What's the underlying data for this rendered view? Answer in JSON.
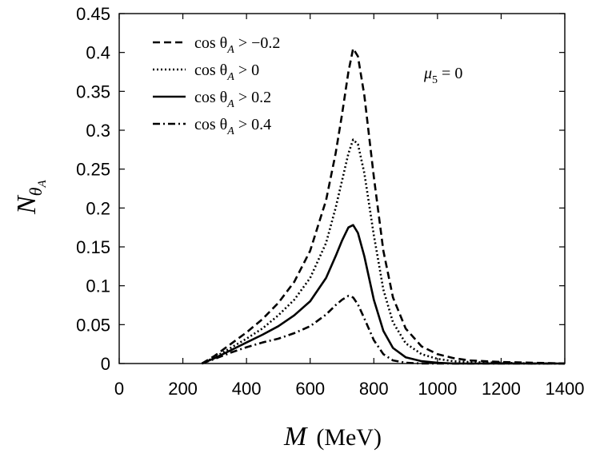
{
  "chart_data": {
    "type": "line",
    "title": "",
    "xlabel_var": "M",
    "xlabel_unit": "(MeV)",
    "ylabel_main": "N",
    "ylabel_sub": "θ",
    "ylabel_subsub": "A",
    "annotation": "μ5 = 0",
    "annotation_main": "μ",
    "annotation_sub": "5",
    "annotation_rest": " = 0",
    "xlim": [
      0,
      1400
    ],
    "ylim": [
      0,
      0.45
    ],
    "xticks": [
      0,
      200,
      400,
      600,
      800,
      1000,
      1200,
      1400
    ],
    "xtick_labels": [
      "0",
      "200",
      "400",
      "600",
      "800",
      "1000",
      "1200",
      "1400"
    ],
    "yticks": [
      0,
      0.05,
      0.1,
      0.15,
      0.2,
      0.25,
      0.3,
      0.35,
      0.4,
      0.45
    ],
    "ytick_labels": [
      "0",
      "0.05",
      "0.1",
      "0.15",
      "0.2",
      "0.25",
      "0.3",
      "0.35",
      "0.4",
      "0.45"
    ],
    "legend_position": "top-left",
    "x": [
      260,
      300,
      350,
      400,
      450,
      500,
      550,
      600,
      650,
      680,
      700,
      720,
      735,
      750,
      770,
      800,
      830,
      860,
      900,
      950,
      1000,
      1050,
      1100,
      1200,
      1300,
      1400
    ],
    "series": [
      {
        "name": "cos θA > −0.2",
        "legend_prefix": "cos θ",
        "legend_sub": "A",
        "legend_suffix": " > −0.2",
        "style": "dashed",
        "values": [
          0.0,
          0.01,
          0.025,
          0.04,
          0.057,
          0.078,
          0.105,
          0.145,
          0.21,
          0.27,
          0.32,
          0.375,
          0.405,
          0.395,
          0.345,
          0.24,
          0.145,
          0.085,
          0.045,
          0.022,
          0.012,
          0.007,
          0.004,
          0.002,
          0.001,
          0.0
        ]
      },
      {
        "name": "cos θA > 0",
        "legend_prefix": "cos θ",
        "legend_sub": "A",
        "legend_suffix": " > 0",
        "style": "dotted",
        "values": [
          0.0,
          0.008,
          0.02,
          0.032,
          0.045,
          0.062,
          0.082,
          0.11,
          0.155,
          0.2,
          0.235,
          0.27,
          0.288,
          0.282,
          0.245,
          0.165,
          0.095,
          0.053,
          0.026,
          0.012,
          0.006,
          0.003,
          0.002,
          0.001,
          0.0,
          0.0
        ]
      },
      {
        "name": "cos θA > 0.2",
        "legend_prefix": "cos θ",
        "legend_sub": "A",
        "legend_suffix": " > 0.2",
        "style": "solid",
        "values": [
          0.0,
          0.007,
          0.017,
          0.027,
          0.037,
          0.048,
          0.062,
          0.08,
          0.11,
          0.138,
          0.158,
          0.175,
          0.178,
          0.168,
          0.138,
          0.082,
          0.042,
          0.02,
          0.008,
          0.003,
          0.001,
          0.0,
          0.0,
          0.0,
          0.0,
          0.0
        ]
      },
      {
        "name": "cos θA > 0.4",
        "legend_prefix": "cos θ",
        "legend_sub": "A",
        "legend_suffix": " > 0.4",
        "style": "dashdot",
        "values": [
          0.0,
          0.006,
          0.014,
          0.021,
          0.027,
          0.032,
          0.039,
          0.048,
          0.063,
          0.075,
          0.082,
          0.087,
          0.085,
          0.076,
          0.058,
          0.03,
          0.012,
          0.004,
          0.001,
          0.0,
          0.0,
          0.0,
          0.0,
          0.0,
          0.0,
          0.0
        ]
      }
    ]
  }
}
